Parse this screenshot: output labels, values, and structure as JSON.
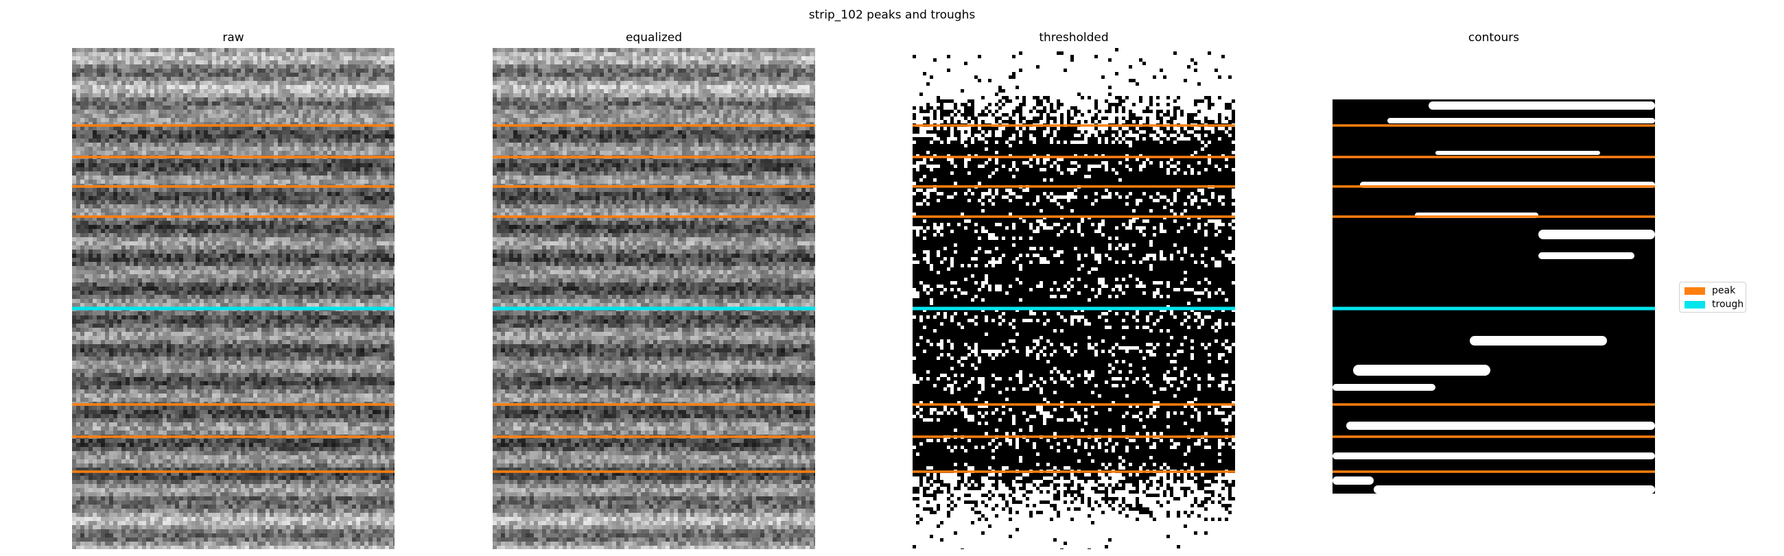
{
  "figure": {
    "title": "strip_102 peaks and troughs"
  },
  "panels": [
    {
      "id": "raw",
      "title": "raw",
      "kind": "gray"
    },
    {
      "id": "equalized",
      "title": "equalized",
      "kind": "gray"
    },
    {
      "id": "thresholded",
      "title": "thresholded",
      "kind": "binary"
    },
    {
      "id": "contours",
      "title": "contours",
      "kind": "contour"
    }
  ],
  "legend": {
    "placement": "right",
    "items": [
      {
        "label": "peak",
        "color": "#ff7f0e"
      },
      {
        "label": "trough",
        "color": "#00e5ee"
      }
    ]
  },
  "markers": {
    "peak_color": "#ff7f0e",
    "trough_color": "#00e5ee"
  }
}
